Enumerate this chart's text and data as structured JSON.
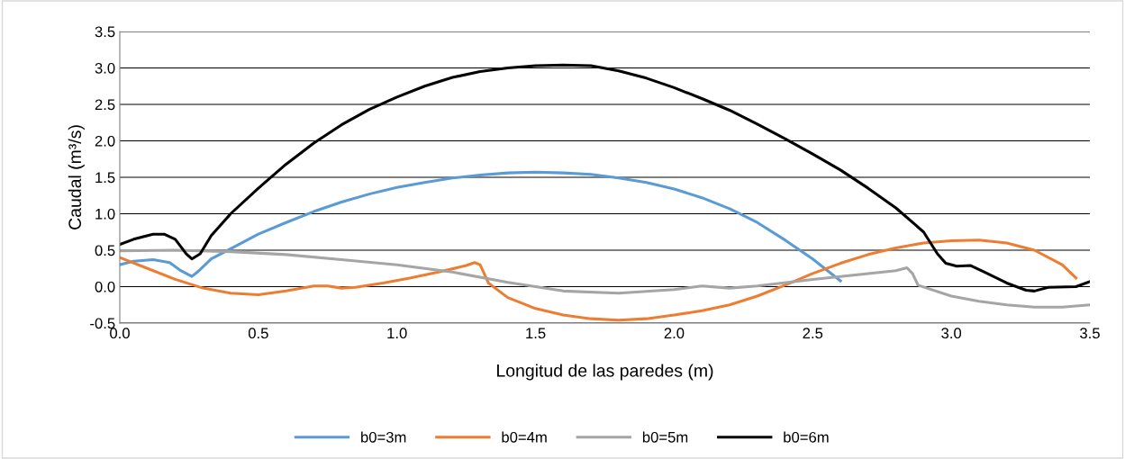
{
  "chart_data": {
    "type": "line",
    "xlabel": "Longitud de las paredes (m)",
    "ylabel": "Caudal (m³/s)",
    "xlim": [
      0,
      3.5
    ],
    "ylim": [
      -0.5,
      3.5
    ],
    "xticks": [
      {
        "value": 0,
        "label": "0.0"
      },
      0.5,
      {
        "value": 1,
        "label": "1.0"
      },
      1.5,
      {
        "value": 2,
        "label": "2.0"
      },
      2.5,
      {
        "value": 3,
        "label": "3.0"
      },
      3.5
    ],
    "yticks": [
      -0.5,
      {
        "value": 0,
        "label": "0.0"
      },
      0.5,
      {
        "value": 1,
        "label": "1.0"
      },
      1.5,
      {
        "value": 2,
        "label": "2.0"
      },
      2.5,
      {
        "value": 3,
        "label": "3.0"
      },
      3.5
    ],
    "grid": "y",
    "legend": "bottom",
    "marker": "none",
    "line_style": "solid",
    "series": [
      {
        "name": "b0=3m",
        "color": "#5b9bd5",
        "x": [
          0,
          0.05,
          0.12,
          0.18,
          0.22,
          0.26,
          0.28,
          0.33,
          0.4,
          0.5,
          0.6,
          0.7,
          0.8,
          0.9,
          1.0,
          1.1,
          1.2,
          1.3,
          1.4,
          1.5,
          1.6,
          1.7,
          1.8,
          1.9,
          2.0,
          2.1,
          2.2,
          2.3,
          2.4,
          2.5,
          2.6
        ],
        "values": [
          0.3,
          0.35,
          0.37,
          0.33,
          0.22,
          0.14,
          0.2,
          0.38,
          0.52,
          0.72,
          0.88,
          1.03,
          1.16,
          1.27,
          1.36,
          1.43,
          1.49,
          1.53,
          1.56,
          1.57,
          1.56,
          1.54,
          1.49,
          1.43,
          1.34,
          1.22,
          1.07,
          0.88,
          0.64,
          0.38,
          0.08
        ]
      },
      {
        "name": "b0=4m",
        "color": "#ed7d31",
        "x": [
          0,
          0.1,
          0.2,
          0.3,
          0.4,
          0.5,
          0.6,
          0.7,
          0.75,
          0.8,
          0.85,
          0.95,
          1.05,
          1.15,
          1.25,
          1.28,
          1.3,
          1.33,
          1.4,
          1.5,
          1.6,
          1.7,
          1.8,
          1.9,
          2.0,
          2.1,
          2.2,
          2.3,
          2.4,
          2.5,
          2.6,
          2.7,
          2.8,
          2.9,
          3.0,
          3.1,
          3.2,
          3.3,
          3.4,
          3.45
        ],
        "values": [
          0.4,
          0.25,
          0.1,
          -0.02,
          -0.09,
          -0.11,
          -0.06,
          0.01,
          0.01,
          -0.02,
          -0.01,
          0.05,
          0.12,
          0.2,
          0.29,
          0.33,
          0.3,
          0.05,
          -0.15,
          -0.3,
          -0.39,
          -0.44,
          -0.46,
          -0.44,
          -0.39,
          -0.33,
          -0.25,
          -0.13,
          0.02,
          0.18,
          0.32,
          0.44,
          0.53,
          0.6,
          0.63,
          0.64,
          0.6,
          0.5,
          0.3,
          0.12
        ]
      },
      {
        "name": "b0=5m",
        "color": "#a5a5a5",
        "x": [
          0,
          0.2,
          0.4,
          0.6,
          0.8,
          1.0,
          1.2,
          1.4,
          1.6,
          1.8,
          2.0,
          2.1,
          2.2,
          2.3,
          2.5,
          2.7,
          2.8,
          2.84,
          2.86,
          2.88,
          3.0,
          3.1,
          3.2,
          3.3,
          3.4,
          3.5
        ],
        "values": [
          0.49,
          0.5,
          0.48,
          0.44,
          0.37,
          0.3,
          0.2,
          0.06,
          -0.06,
          -0.09,
          -0.04,
          0.01,
          -0.02,
          0.01,
          0.1,
          0.18,
          0.22,
          0.26,
          0.18,
          0.02,
          -0.13,
          -0.2,
          -0.25,
          -0.28,
          -0.28,
          -0.25
        ]
      },
      {
        "name": "b0=6m",
        "color": "#000000",
        "x": [
          0,
          0.05,
          0.12,
          0.16,
          0.2,
          0.24,
          0.26,
          0.29,
          0.33,
          0.4,
          0.5,
          0.6,
          0.7,
          0.8,
          0.9,
          1.0,
          1.1,
          1.2,
          1.3,
          1.4,
          1.5,
          1.6,
          1.7,
          1.8,
          1.9,
          2.0,
          2.1,
          2.2,
          2.3,
          2.4,
          2.5,
          2.6,
          2.7,
          2.8,
          2.9,
          2.95,
          2.98,
          3.02,
          3.07,
          3.12,
          3.2,
          3.27,
          3.3,
          3.35,
          3.45,
          3.5
        ],
        "values": [
          0.58,
          0.65,
          0.72,
          0.72,
          0.65,
          0.45,
          0.38,
          0.45,
          0.7,
          1.0,
          1.35,
          1.68,
          1.97,
          2.22,
          2.43,
          2.6,
          2.75,
          2.87,
          2.95,
          3.0,
          3.03,
          3.04,
          3.03,
          2.96,
          2.86,
          2.73,
          2.58,
          2.42,
          2.23,
          2.03,
          1.82,
          1.6,
          1.35,
          1.08,
          0.75,
          0.45,
          0.32,
          0.28,
          0.29,
          0.2,
          0.05,
          -0.05,
          -0.06,
          -0.01,
          0.0,
          0.07
        ]
      }
    ]
  }
}
